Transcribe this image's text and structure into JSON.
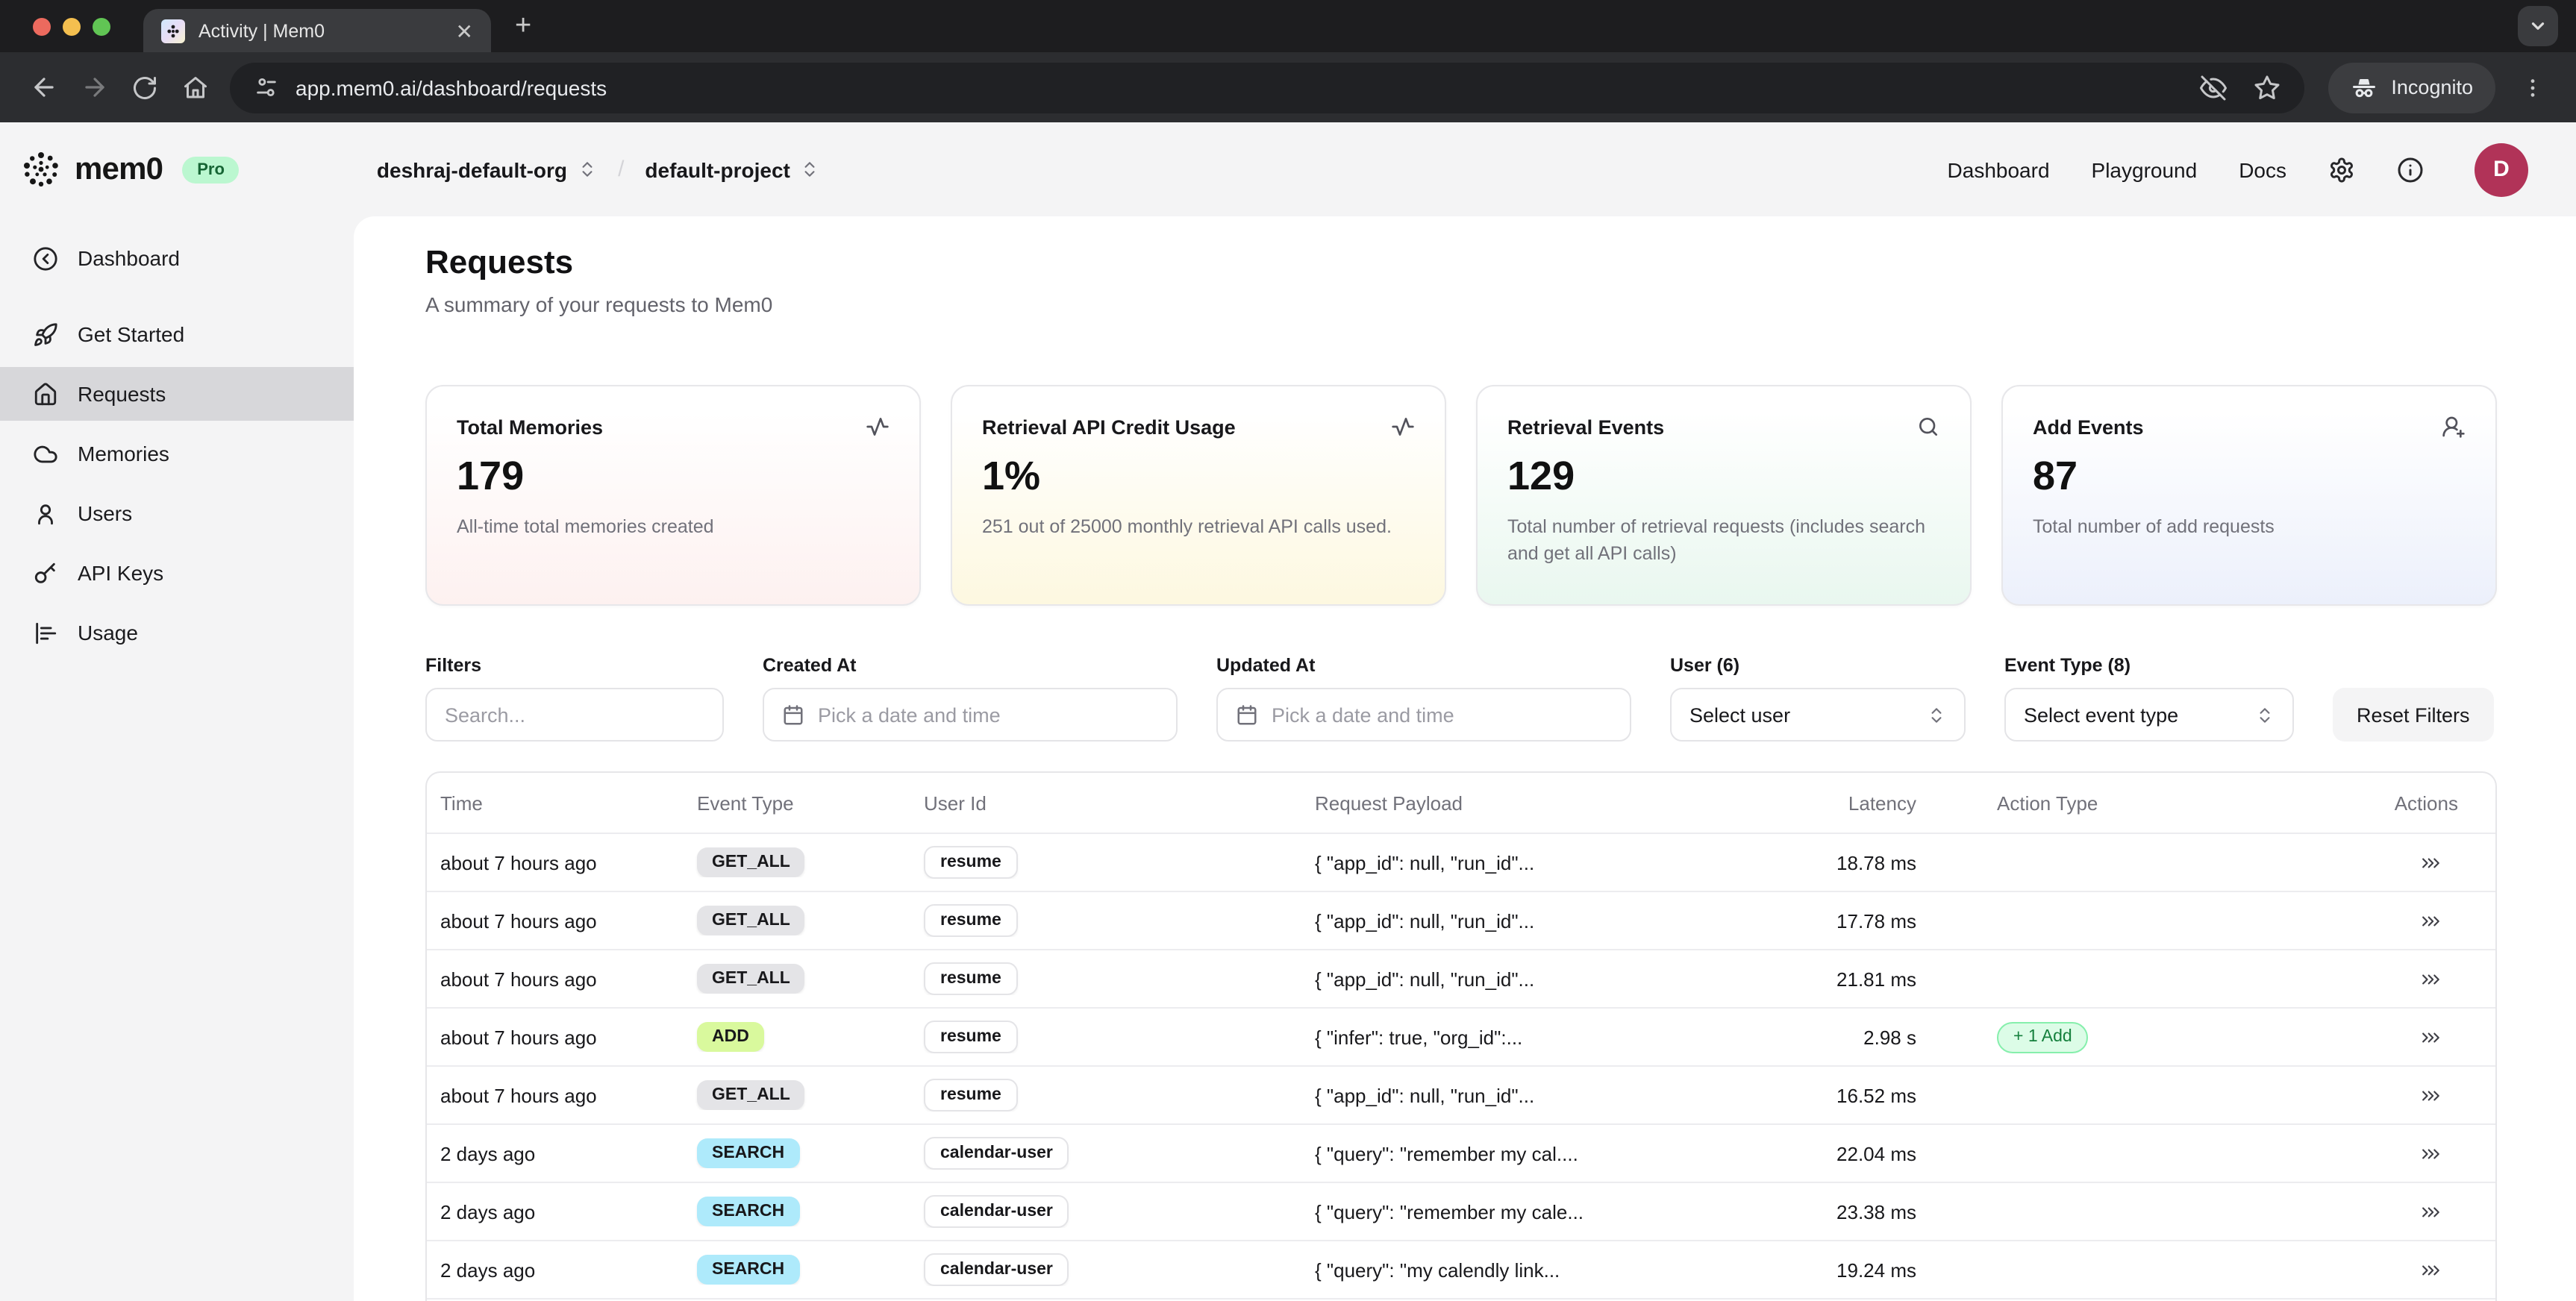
{
  "colors": {
    "pro_badge_bg": "#bbf7d0",
    "pro_badge_text": "#166534",
    "avatar_bg": "#b13358",
    "event_badges": {
      "gray": "#e4e4e7",
      "lime": "#d9f99d",
      "cyan": "#aeeafb"
    },
    "action_pill": {
      "bg": "#dcfce7",
      "border": "#86efac",
      "text": "#15803d"
    },
    "card_tints": [
      "#fdf1f0",
      "#fdf8e0",
      "#e9f7ef",
      "#ecf0fb"
    ]
  },
  "browser": {
    "tab_title": "Activity | Mem0",
    "url": "app.mem0.ai/dashboard/requests",
    "incognito_label": "Incognito"
  },
  "header": {
    "logo_text": "mem0",
    "plan_badge": "Pro",
    "org": "deshraj-default-org",
    "breadcrumb_separator": "/",
    "project": "default-project",
    "nav": [
      "Dashboard",
      "Playground",
      "Docs"
    ],
    "avatar_initial": "D"
  },
  "sidebar": {
    "items": [
      {
        "label": "Dashboard"
      },
      {
        "label": "Get Started"
      },
      {
        "label": "Requests"
      },
      {
        "label": "Memories"
      },
      {
        "label": "Users"
      },
      {
        "label": "API Keys"
      },
      {
        "label": "Usage"
      }
    ]
  },
  "page": {
    "title": "Requests",
    "subtitle": "A summary of your requests to Mem0"
  },
  "cards": [
    {
      "title": "Total Memories",
      "value": "179",
      "description": "All-time total memories created"
    },
    {
      "title": "Retrieval API Credit Usage",
      "value": "1%",
      "description": "251 out of 25000 monthly retrieval API calls used."
    },
    {
      "title": "Retrieval Events",
      "value": "129",
      "description": "Total number of retrieval requests (includes search and get all API calls)"
    },
    {
      "title": "Add Events",
      "value": "87",
      "description": "Total number of add requests"
    }
  ],
  "filters": {
    "search_label": "Filters",
    "search_placeholder": "Search...",
    "created_at_label": "Created At",
    "created_at_placeholder": "Pick a date and time",
    "updated_at_label": "Updated At",
    "updated_at_placeholder": "Pick a date and time",
    "user_label": "User (6)",
    "user_value": "Select user",
    "event_type_label": "Event Type (8)",
    "event_type_value": "Select event type",
    "reset_button": "Reset Filters"
  },
  "table": {
    "columns": [
      "Time",
      "Event Type",
      "User Id",
      "Request Payload",
      "Latency",
      "Action Type",
      "Actions"
    ],
    "rows": [
      {
        "time": "about 7 hours ago",
        "event_type": "GET_ALL",
        "event_color": "gray",
        "user_id": "resume",
        "payload": "{ \"app_id\": null, \"run_id\"...",
        "latency": "18.78 ms",
        "action": ""
      },
      {
        "time": "about 7 hours ago",
        "event_type": "GET_ALL",
        "event_color": "gray",
        "user_id": "resume",
        "payload": "{ \"app_id\": null, \"run_id\"...",
        "latency": "17.78 ms",
        "action": ""
      },
      {
        "time": "about 7 hours ago",
        "event_type": "GET_ALL",
        "event_color": "gray",
        "user_id": "resume",
        "payload": "{ \"app_id\": null, \"run_id\"...",
        "latency": "21.81 ms",
        "action": ""
      },
      {
        "time": "about 7 hours ago",
        "event_type": "ADD",
        "event_color": "lime",
        "user_id": "resume",
        "payload": "{ \"infer\": true, \"org_id\":...",
        "latency": "2.98 s",
        "action": "+ 1 Add"
      },
      {
        "time": "about 7 hours ago",
        "event_type": "GET_ALL",
        "event_color": "gray",
        "user_id": "resume",
        "payload": "{ \"app_id\": null, \"run_id\"...",
        "latency": "16.52 ms",
        "action": ""
      },
      {
        "time": "2 days ago",
        "event_type": "SEARCH",
        "event_color": "cyan",
        "user_id": "calendar-user",
        "payload": "{ \"query\": \"remember my cal....",
        "latency": "22.04 ms",
        "action": ""
      },
      {
        "time": "2 days ago",
        "event_type": "SEARCH",
        "event_color": "cyan",
        "user_id": "calendar-user",
        "payload": "{ \"query\": \"remember my cale...",
        "latency": "23.38 ms",
        "action": ""
      },
      {
        "time": "2 days ago",
        "event_type": "SEARCH",
        "event_color": "cyan",
        "user_id": "calendar-user",
        "payload": "{ \"query\": \"my calendly link...",
        "latency": "19.24 ms",
        "action": ""
      }
    ]
  }
}
